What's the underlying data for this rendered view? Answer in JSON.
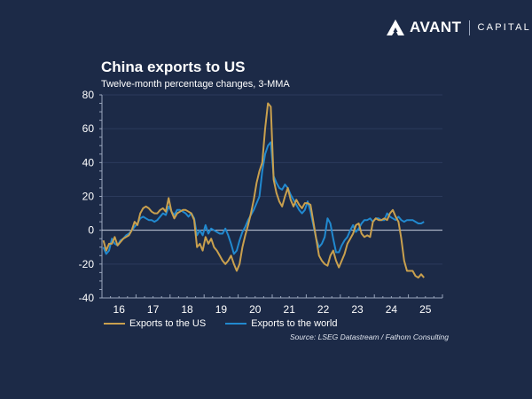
{
  "brand": {
    "name": "AVANT",
    "sub": "CAPITAL"
  },
  "chart_data": {
    "type": "line",
    "title": "China exports to US",
    "subtitle": "Twelve-month percentage changes, 3-MMA",
    "xlabel": "",
    "ylabel": "",
    "ylim": [
      -40,
      80
    ],
    "yticks": [
      -40,
      -20,
      0,
      20,
      40,
      60,
      80
    ],
    "xticks": [
      "16",
      "17",
      "18",
      "19",
      "20",
      "21",
      "22",
      "23",
      "24",
      "25"
    ],
    "x_start": "2016-01",
    "frequency": "monthly",
    "grid": true,
    "zero_line": true,
    "legend_position": "bottom-left",
    "series": [
      {
        "name": "Exports to the US",
        "color": "#c9a04e",
        "values": [
          -6,
          -12,
          -8,
          -8,
          -4,
          -9,
          -7,
          -5,
          -4,
          -3,
          0,
          5,
          3,
          10,
          13,
          14,
          13,
          11,
          10,
          10,
          12,
          13,
          11,
          19,
          11,
          7,
          10,
          11,
          12,
          12,
          11,
          10,
          6,
          -10,
          -8,
          -12,
          -4,
          -8,
          -5,
          -10,
          -12,
          -15,
          -18,
          -20,
          -18,
          -15,
          -20,
          -24,
          -20,
          -10,
          -3,
          3,
          10,
          18,
          28,
          35,
          40,
          60,
          75,
          73,
          30,
          22,
          17,
          14,
          20,
          25,
          18,
          14,
          18,
          15,
          13,
          16,
          16,
          15,
          5,
          -5,
          -15,
          -18,
          -20,
          -21,
          -15,
          -12,
          -18,
          -22,
          -18,
          -14,
          -8,
          -5,
          -2,
          3,
          4,
          -2,
          -4,
          -3,
          -4,
          5,
          7,
          6,
          6,
          7,
          6,
          10,
          12,
          8,
          5,
          -5,
          -18,
          -24,
          -24,
          -24,
          -27,
          -28,
          -26,
          -28
        ]
      },
      {
        "name": "Exports to the world",
        "color": "#2189cf",
        "values": [
          -10,
          -14,
          -12,
          -5,
          -8,
          -9,
          -6,
          -5,
          -3,
          -2,
          0,
          2,
          4,
          7,
          8,
          7,
          6,
          6,
          5,
          6,
          8,
          10,
          9,
          14,
          11,
          9,
          12,
          12,
          11,
          10,
          8,
          10,
          7,
          -3,
          0,
          -3,
          3,
          -2,
          1,
          0,
          -1,
          -2,
          -2,
          1,
          -3,
          -8,
          -14,
          -12,
          -6,
          -1,
          2,
          6,
          9,
          12,
          16,
          20,
          35,
          45,
          50,
          52,
          32,
          28,
          25,
          24,
          27,
          25,
          21,
          18,
          15,
          12,
          10,
          12,
          17,
          11,
          3,
          -5,
          -10,
          -8,
          -4,
          7,
          4,
          -5,
          -13,
          -13,
          -9,
          -6,
          -4,
          0,
          3,
          -1,
          1,
          4,
          6,
          6,
          7,
          5,
          7,
          7,
          6,
          6,
          10,
          8,
          7,
          6,
          8,
          6,
          5,
          6,
          6,
          6,
          5,
          4,
          4,
          5
        ]
      }
    ],
    "source": "Source: LSEG Datastream / Fathom Consulting"
  }
}
